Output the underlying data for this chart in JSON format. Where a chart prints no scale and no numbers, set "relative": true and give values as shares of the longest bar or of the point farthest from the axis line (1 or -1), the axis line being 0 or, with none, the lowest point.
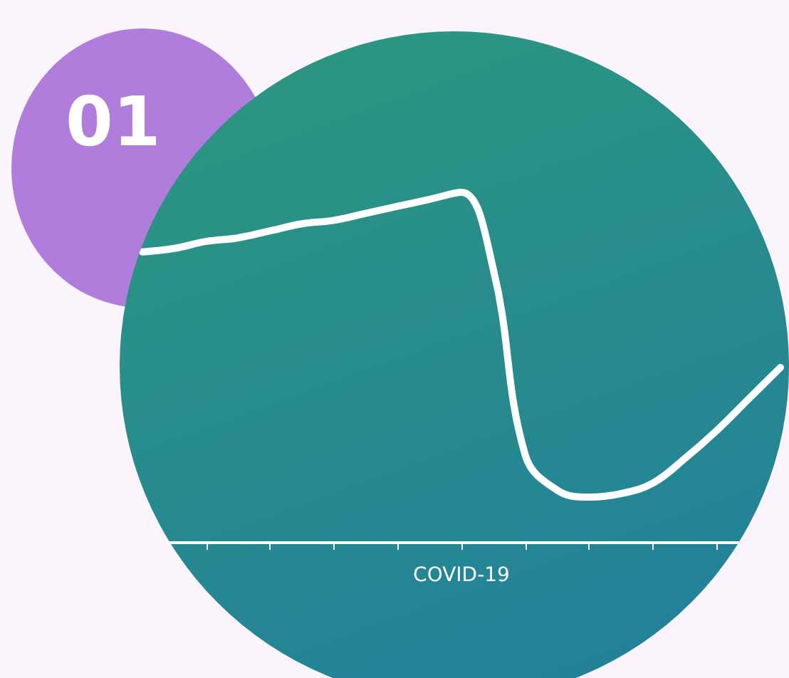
{
  "chart_data": {
    "type": "line",
    "relative": true,
    "categories": [
      null,
      null,
      null,
      null,
      null,
      null,
      null,
      null,
      null,
      null,
      null,
      null,
      null,
      null,
      null,
      null,
      null,
      null,
      null,
      null,
      null
    ],
    "series": [
      {
        "color": "#ffffff",
        "values": [
          0.83,
          0.84,
          0.86,
          0.87,
          0.89,
          0.91,
          0.92,
          0.94,
          0.96,
          0.98,
          1,
          0.78,
          0.25,
          0.15,
          0.13,
          0.14,
          0.17,
          0.24,
          0.32,
          0.41,
          0.5
        ]
      }
    ],
    "annotations": [
      "01",
      "COVID-19"
    ],
    "marker": "none",
    "grid": false
  }
}
